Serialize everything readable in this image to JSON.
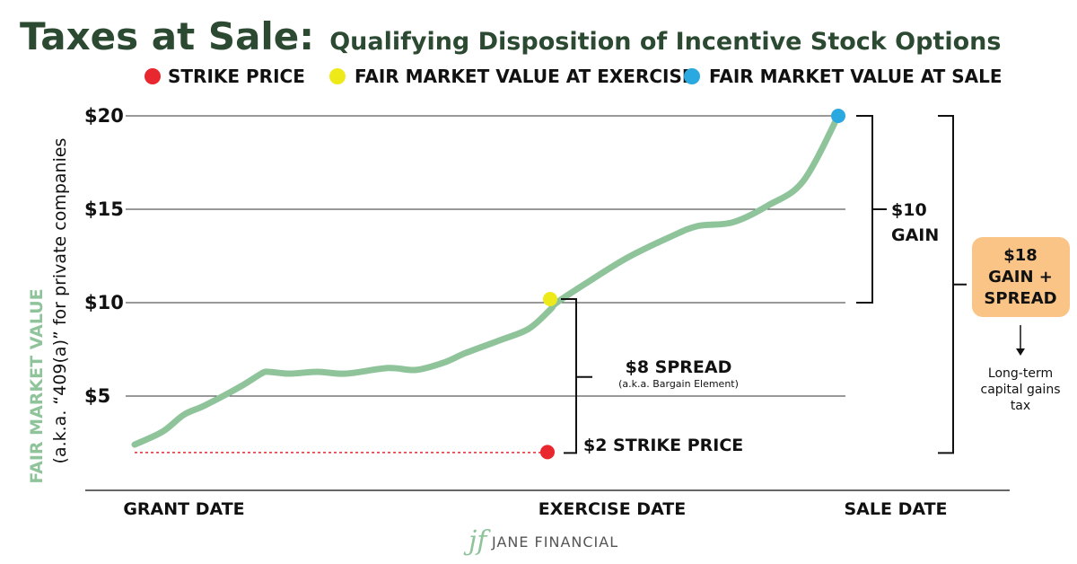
{
  "header": {
    "title": "Taxes at Sale:",
    "subtitle": "Qualifying Disposition of Incentive Stock Options"
  },
  "legend": [
    {
      "label": "STRIKE PRICE",
      "color": "#e8272e"
    },
    {
      "label": "FAIR MARKET VALUE AT EXERCISE",
      "color": "#eeea1a"
    },
    {
      "label": "FAIR MARKET VALUE AT SALE",
      "color": "#2aa8e0"
    }
  ],
  "axis": {
    "ylabel_line1": "FAIR MARKET VALUE",
    "ylabel_line2": "(a.k.a. “409(a)” for private companies",
    "y_ticks": [
      "$20",
      "$15",
      "$10",
      "$5"
    ],
    "x_labels": [
      "GRANT DATE",
      "EXERCISE DATE",
      "SALE DATE"
    ]
  },
  "annotations": {
    "spread_label": "$8 SPREAD",
    "spread_sub": "(a.k.a. Bargain Element)",
    "strike_label": "$2 STRIKE PRICE",
    "gain_line1": "$10",
    "gain_line2": "GAIN",
    "box_line1": "$18",
    "box_line2": "GAIN +",
    "box_line3": "SPREAD",
    "note_line1": "Long-term",
    "note_line2": "capital gains",
    "note_line3": "tax"
  },
  "logo": {
    "mark": "jf",
    "text": "JANE FINANCIAL"
  },
  "colors": {
    "line": "#8fc49b",
    "title": "#2c4a32",
    "box": "#f9c485",
    "strike": "#e8272e",
    "exercise": "#eeea1a",
    "sale": "#2aa8e0"
  },
  "chart_data": {
    "type": "line",
    "title": "Taxes at Sale: Qualifying Disposition of Incentive Stock Options",
    "ylabel": "FAIR MARKET VALUE (a.k.a. “409(a)” for private companies",
    "xlabel": "",
    "x_categories": [
      "GRANT DATE",
      "EXERCISE DATE",
      "SALE DATE"
    ],
    "ylim": [
      0,
      20
    ],
    "y_ticks": [
      5,
      10,
      15,
      20
    ],
    "grid": true,
    "x_index": [
      0,
      0.04,
      0.07,
      0.1,
      0.15,
      0.18,
      0.19,
      0.22,
      0.26,
      0.3,
      0.36,
      0.4,
      0.44,
      0.47,
      0.52,
      0.56,
      0.59,
      0.6,
      0.64,
      0.7,
      0.76,
      0.8,
      0.85,
      0.9,
      0.95,
      1.0
    ],
    "series": [
      {
        "values": [
          2.4,
          3.1,
          4.0,
          4.5,
          5.5,
          6.2,
          6.3,
          6.2,
          6.3,
          6.2,
          6.5,
          6.4,
          6.8,
          7.3,
          8.0,
          8.6,
          9.6,
          10.0,
          11.0,
          12.4,
          13.5,
          14.1,
          14.3,
          15.2,
          16.5,
          20.0
        ]
      }
    ],
    "markers": [
      {
        "label": "STRIKE PRICE",
        "x": "EXERCISE DATE",
        "y": 2,
        "color": "#e8272e"
      },
      {
        "label": "FAIR MARKET VALUE AT EXERCISE",
        "x": "EXERCISE DATE",
        "y": 10,
        "color": "#eeea1a"
      },
      {
        "label": "FAIR MARKET VALUE AT SALE",
        "x": "SALE DATE",
        "y": 20,
        "color": "#2aa8e0"
      }
    ],
    "brackets": [
      {
        "label": "$8 SPREAD",
        "from": 2,
        "to": 10
      },
      {
        "label": "$10 GAIN",
        "from": 10,
        "to": 20
      },
      {
        "label": "$18 GAIN + SPREAD",
        "from": 2,
        "to": 20
      }
    ]
  }
}
